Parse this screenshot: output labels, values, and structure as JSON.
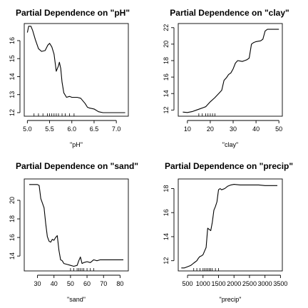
{
  "chart_data": [
    {
      "type": "line",
      "title": "Partial Dependence on \"pH\"",
      "xlabel": "\"pH\"",
      "ylabel": "",
      "xlim": [
        4.93,
        7.27
      ],
      "ylim": [
        11.8,
        16.95
      ],
      "xticks": [
        5.0,
        5.5,
        6.0,
        6.5,
        7.0
      ],
      "xtick_labels": [
        "5.0",
        "5.5",
        "6.0",
        "6.5",
        "7.0"
      ],
      "yticks": [
        12,
        13,
        14,
        15,
        16
      ],
      "ytick_labels": [
        "12",
        "13",
        "14",
        "15",
        "16"
      ],
      "grid": false,
      "x": [
        5.0,
        5.03,
        5.08,
        5.12,
        5.18,
        5.25,
        5.32,
        5.4,
        5.46,
        5.5,
        5.55,
        5.6,
        5.65,
        5.7,
        5.72,
        5.75,
        5.78,
        5.82,
        5.88,
        5.95,
        6.0,
        6.05,
        6.12,
        6.2,
        6.3,
        6.35,
        6.4,
        6.5,
        6.6,
        6.7,
        6.85,
        7.0,
        7.2
      ],
      "y": [
        16.45,
        16.8,
        16.8,
        16.55,
        16.05,
        15.55,
        15.4,
        15.45,
        15.75,
        15.85,
        15.65,
        15.25,
        14.3,
        14.6,
        14.8,
        14.45,
        13.7,
        13.1,
        12.85,
        12.9,
        12.85,
        12.85,
        12.85,
        12.8,
        12.5,
        12.3,
        12.25,
        12.2,
        12.05,
        12.0,
        12.0,
        12.0,
        12.0
      ],
      "rug": [
        5.15,
        5.25,
        5.35,
        5.45,
        5.5,
        5.55,
        5.6,
        5.65,
        5.7,
        5.78,
        5.85,
        5.95,
        6.05
      ]
    },
    {
      "type": "line",
      "title": "Partial Dependence on \"clay\"",
      "xlabel": "\"clay\"",
      "ylabel": "",
      "xlim": [
        6,
        51.5
      ],
      "ylim": [
        11.25,
        22.5
      ],
      "xticks": [
        10,
        20,
        30,
        40,
        50
      ],
      "xtick_labels": [
        "10",
        "20",
        "30",
        "40",
        "50"
      ],
      "yticks": [
        12,
        14,
        16,
        18,
        20,
        22
      ],
      "ytick_labels": [
        "12",
        "14",
        "16",
        "18",
        "20",
        "22"
      ],
      "grid": false,
      "x": [
        8,
        10,
        12,
        14,
        15,
        17,
        18,
        19,
        20,
        22,
        24,
        25,
        26,
        27,
        28,
        29,
        30,
        31,
        32,
        33,
        34,
        35,
        36,
        37,
        38,
        39,
        40,
        41,
        42,
        43,
        44,
        45,
        47,
        50
      ],
      "y": [
        11.75,
        11.7,
        11.8,
        12.0,
        12.1,
        12.3,
        12.4,
        12.7,
        13.0,
        13.5,
        14.1,
        14.4,
        15.6,
        15.9,
        16.3,
        16.5,
        17.0,
        17.7,
        18.0,
        17.95,
        17.9,
        18.0,
        18.1,
        18.3,
        20.0,
        20.2,
        20.3,
        20.35,
        20.4,
        20.6,
        21.6,
        21.8,
        21.8,
        21.8
      ],
      "rug": [
        15,
        16.5,
        18,
        19,
        20,
        21,
        22
      ]
    },
    {
      "type": "line",
      "title": "Partial Dependence on \"sand\"",
      "xlabel": "\"sand\"",
      "ylabel": "",
      "xlim": [
        22,
        85
      ],
      "ylim": [
        12.4,
        22.3
      ],
      "xticks": [
        30,
        40,
        50,
        60,
        70,
        80
      ],
      "xtick_labels": [
        "30",
        "40",
        "50",
        "60",
        "70",
        "80"
      ],
      "yticks": [
        14,
        16,
        18,
        20
      ],
      "ytick_labels": [
        "14",
        "16",
        "18",
        "20"
      ],
      "grid": false,
      "x": [
        25,
        27,
        30,
        31,
        32,
        33,
        34,
        35,
        36,
        37,
        38,
        39,
        40,
        41,
        42,
        43,
        44,
        45,
        46,
        48,
        50,
        52,
        54,
        55,
        56,
        57,
        58,
        60,
        62,
        64,
        66,
        68,
        70,
        75,
        80,
        82
      ],
      "y": [
        21.7,
        21.7,
        21.7,
        21.6,
        20.2,
        19.7,
        19.2,
        17.5,
        16.1,
        15.6,
        15.5,
        15.8,
        15.7,
        16.0,
        16.2,
        14.6,
        13.6,
        13.5,
        13.2,
        13.1,
        13.0,
        12.9,
        13.0,
        13.5,
        13.9,
        13.2,
        13.3,
        13.4,
        13.3,
        13.6,
        13.5,
        13.6,
        13.6,
        13.6,
        13.6,
        13.6
      ],
      "rug": [
        50,
        52,
        54,
        55,
        56,
        57,
        58,
        60,
        62,
        64
      ]
    },
    {
      "type": "line",
      "title": "Partial Dependence on \"precip\"",
      "xlabel": "\"precip\"",
      "ylabel": "",
      "xlim": [
        200,
        3560
      ],
      "ylim": [
        11.15,
        18.8
      ],
      "xticks": [
        500,
        1000,
        1500,
        2000,
        2500,
        3000,
        3500
      ],
      "xtick_labels": [
        "500",
        "1000",
        "1500",
        "2000",
        "2500",
        "3000",
        "3500"
      ],
      "yticks": [
        12,
        14,
        16,
        18
      ],
      "ytick_labels": [
        "12",
        "14",
        "16",
        "18"
      ],
      "grid": false,
      "x": [
        300,
        400,
        500,
        600,
        700,
        800,
        850,
        900,
        950,
        1000,
        1050,
        1100,
        1150,
        1200,
        1250,
        1300,
        1350,
        1400,
        1450,
        1500,
        1550,
        1600,
        1700,
        1800,
        1900,
        2000,
        2200,
        2400,
        2600,
        2800,
        3000,
        3200,
        3400
      ],
      "y": [
        11.4,
        11.4,
        11.5,
        11.6,
        11.8,
        12.0,
        12.2,
        12.35,
        12.4,
        12.5,
        12.8,
        13.1,
        14.7,
        14.6,
        14.5,
        15.2,
        16.2,
        16.5,
        16.9,
        17.9,
        18.0,
        17.9,
        18.0,
        18.2,
        18.3,
        18.35,
        18.3,
        18.3,
        18.3,
        18.3,
        18.25,
        18.25,
        18.25
      ],
      "rug": [
        700,
        800,
        900,
        1000,
        1050,
        1100,
        1150,
        1200,
        1250,
        1300,
        1400,
        1500
      ]
    }
  ]
}
